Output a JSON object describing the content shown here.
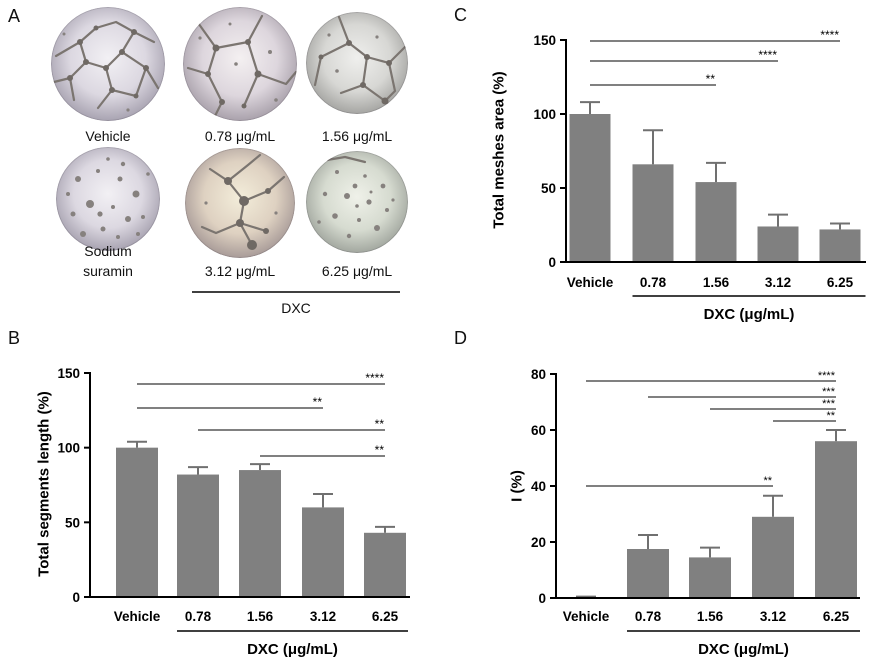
{
  "figure": {
    "panel_a": {
      "letter": "A",
      "images": [
        {
          "label": "Vehicle"
        },
        {
          "label": "0.78 μg/mL"
        },
        {
          "label": "1.56 μg/mL"
        },
        {
          "label": [
            "Sodium",
            "suramin"
          ]
        },
        {
          "label": "3.12 μg/mL"
        },
        {
          "label": "6.25 μg/mL"
        }
      ],
      "group_label": "DXC"
    }
  },
  "colors": {
    "bar": "#808080",
    "error_bar": "#707070",
    "axis": "#000000"
  },
  "chart_data": [
    {
      "panel": "B",
      "type": "bar",
      "categories": [
        "Vehicle",
        "0.78",
        "1.56",
        "3.12",
        "6.25"
      ],
      "values": [
        100,
        82,
        85,
        60,
        43
      ],
      "errors": [
        4,
        5,
        4,
        9,
        4
      ],
      "ylabel": "Total segments length (%)",
      "ylim": [
        0,
        150
      ],
      "yticks": [
        0,
        50,
        100,
        150
      ],
      "x_group": {
        "label": "DXC (μg/mL)",
        "from": 1,
        "to": 4
      },
      "significance": [
        {
          "from": 0,
          "to": 4,
          "label": "****"
        },
        {
          "from": 0,
          "to": 3,
          "label": "**"
        },
        {
          "from": 1,
          "to": 4,
          "label": "**"
        },
        {
          "from": 2,
          "to": 4,
          "label": "**"
        }
      ]
    },
    {
      "panel": "C",
      "type": "bar",
      "categories": [
        "Vehicle",
        "0.78",
        "1.56",
        "3.12",
        "6.25"
      ],
      "values": [
        100,
        66,
        54,
        24,
        22
      ],
      "errors": [
        8,
        23,
        13,
        8,
        4
      ],
      "ylabel": "Total meshes area (%)",
      "ylim": [
        0,
        150
      ],
      "yticks": [
        0,
        50,
        100,
        150
      ],
      "x_group": {
        "label": "DXC (μg/mL)",
        "from": 1,
        "to": 4
      },
      "significance": [
        {
          "from": 0,
          "to": 4,
          "label": "****"
        },
        {
          "from": 0,
          "to": 3,
          "label": "****"
        },
        {
          "from": 0,
          "to": 2,
          "label": "**"
        }
      ]
    },
    {
      "panel": "D",
      "type": "bar",
      "categories": [
        "Vehicle",
        "0.78",
        "1.56",
        "3.12",
        "6.25"
      ],
      "values": [
        0,
        17.5,
        14.5,
        29,
        56
      ],
      "errors": [
        0.5,
        5,
        3.5,
        7.5,
        4
      ],
      "ylabel": "I (%)",
      "ylim": [
        0,
        80
      ],
      "yticks": [
        0,
        20,
        40,
        60,
        80
      ],
      "x_group": {
        "label": "DXC (μg/mL)",
        "from": 1,
        "to": 4
      },
      "significance": [
        {
          "from": 0,
          "to": 4,
          "label": "****"
        },
        {
          "from": 1,
          "to": 4,
          "label": "***"
        },
        {
          "from": 2,
          "to": 4,
          "label": "***"
        },
        {
          "from": 3,
          "to": 4,
          "label": "**"
        },
        {
          "from": 0,
          "to": 3,
          "label": "**"
        }
      ]
    }
  ]
}
